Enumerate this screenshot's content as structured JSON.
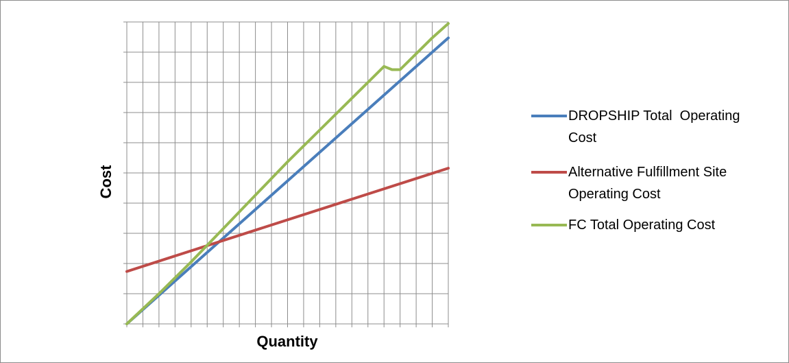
{
  "chart_data": {
    "type": "line",
    "xlabel": "Quantity",
    "ylabel": "Cost",
    "xlim": [
      0,
      20
    ],
    "ylim": [
      0,
      9.5
    ],
    "x_gridlines": 20,
    "y_gridlines": 10,
    "grid": true,
    "tick_labels_shown": false,
    "legend_position": "right",
    "series": [
      {
        "name": "DROPSHIP Total  Operating Cost",
        "name_lines": [
          "DROPSHIP Total  Operating",
          "Cost"
        ],
        "color": "#4a7ebb",
        "x": [
          0,
          20
        ],
        "y": [
          0,
          9.0
        ]
      },
      {
        "name": "Alternative Fulfillment Site Operating Cost",
        "name_lines": [
          "Alternative Fulfillment Site",
          "Operating Cost"
        ],
        "color": "#be4b48",
        "x": [
          0,
          20
        ],
        "y": [
          1.65,
          4.9
        ]
      },
      {
        "name": "FC Total Operating Cost",
        "name_lines": [
          "FC Total Operating Cost"
        ],
        "color": "#98b954",
        "x": [
          0,
          2,
          4,
          6,
          8,
          10,
          12,
          14,
          15,
          16,
          16.5,
          17,
          18,
          19,
          20
        ],
        "y": [
          0,
          0.95,
          1.95,
          3.0,
          4.05,
          5.1,
          6.1,
          7.1,
          7.6,
          8.1,
          8.0,
          8.0,
          8.5,
          9.0,
          9.45
        ]
      }
    ]
  }
}
